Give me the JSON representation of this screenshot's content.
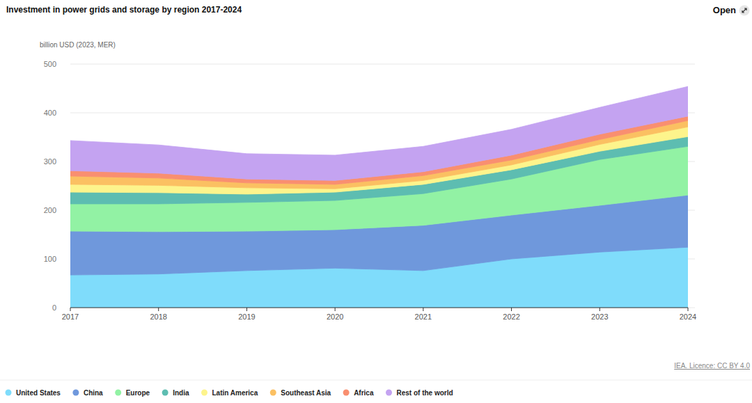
{
  "chart_data": {
    "type": "area",
    "title": "Investment in power grids and storage by region 2017-2024",
    "y_label": "billion USD (2023, MER)",
    "button_label": "Open",
    "source": "IEA. Licence: CC BY 4.0",
    "x": [
      2017,
      2018,
      2019,
      2020,
      2021,
      2022,
      2023,
      2024
    ],
    "xlim": [
      2017,
      2024
    ],
    "xticks": [
      2017,
      2018,
      2019,
      2020,
      2021,
      2022,
      2023,
      2024
    ],
    "ylim": [
      0,
      500
    ],
    "yticks": [
      0,
      100,
      200,
      300,
      400,
      500
    ],
    "grid": true,
    "stacked": true,
    "legend": "bottom",
    "series": [
      {
        "name": "United States",
        "color": "#7fdcfb",
        "values": [
          67,
          69,
          76,
          81,
          76,
          100,
          114,
          124
        ]
      },
      {
        "name": "China",
        "color": "#6f98dc",
        "values": [
          90,
          87,
          81,
          79,
          93,
          90,
          96,
          107
        ]
      },
      {
        "name": "Europe",
        "color": "#92f2a4",
        "values": [
          56,
          57,
          59,
          60,
          65,
          74,
          94,
          100
        ]
      },
      {
        "name": "India",
        "color": "#5dbdb1",
        "values": [
          24,
          23,
          17,
          17,
          19,
          19,
          17,
          20
        ]
      },
      {
        "name": "Latin America",
        "color": "#fdf48c",
        "values": [
          16,
          15,
          13,
          7,
          8,
          10,
          14,
          20
        ]
      },
      {
        "name": "Southeast Asia",
        "color": "#fbc062",
        "values": [
          17,
          15,
          10,
          9,
          10,
          10,
          10,
          13
        ]
      },
      {
        "name": "Africa",
        "color": "#f98f70",
        "values": [
          11,
          10,
          8,
          8,
          8,
          10,
          11,
          9
        ]
      },
      {
        "name": "Rest of the world",
        "color": "#c4a3f1",
        "values": [
          62,
          58,
          52,
          52,
          52,
          53,
          55,
          61
        ]
      }
    ]
  }
}
